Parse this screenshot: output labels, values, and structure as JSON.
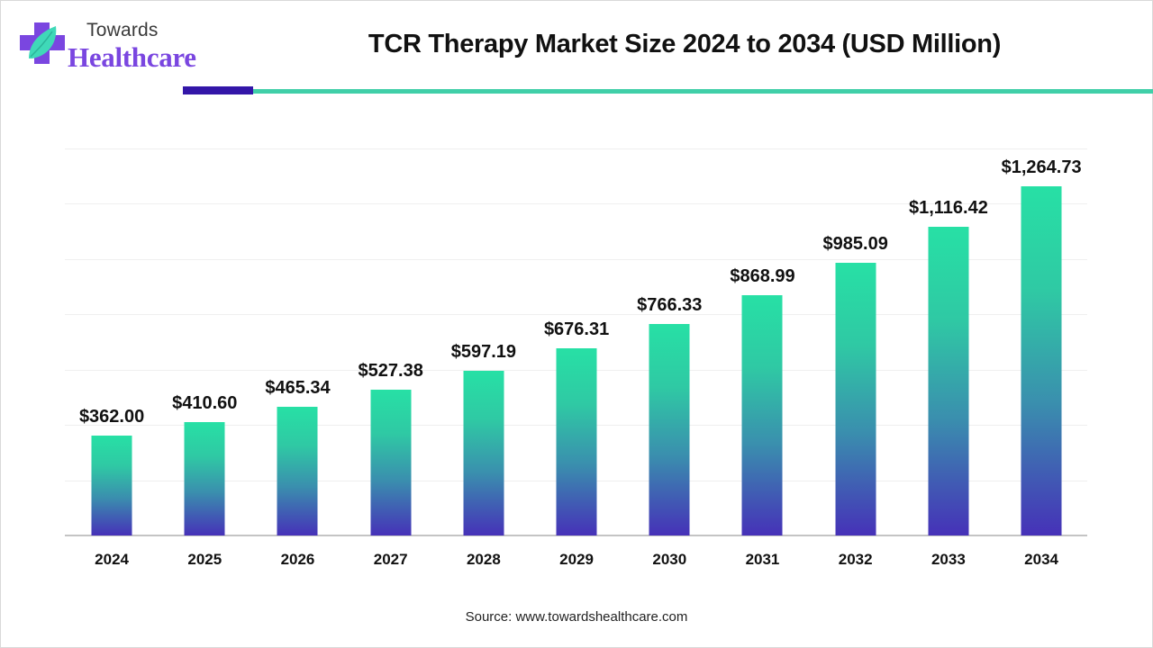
{
  "brand": {
    "line1": "Towards",
    "line2": "Healthcare",
    "icon": "medical-cross-leaf-icon",
    "colors": {
      "cross": "#7a46e0",
      "leaf": "#3fd9b8",
      "text_dark": "#3a3a3a"
    }
  },
  "header": {
    "title": "TCR Therapy Market Size 2024 to 2034 (USD Million)",
    "accent_colors": {
      "dark": "#3316a8",
      "teal": "#40cfa8"
    }
  },
  "footer": {
    "source": "Source: www.towardshealthcare.com"
  },
  "chart_data": {
    "type": "bar",
    "title": "TCR Therapy Market Size 2024 to 2034 (USD Million)",
    "xlabel": "",
    "ylabel": "USD Million",
    "categories": [
      "2024",
      "2025",
      "2026",
      "2027",
      "2028",
      "2029",
      "2030",
      "2031",
      "2032",
      "2033",
      "2034"
    ],
    "values": [
      362.0,
      410.6,
      465.34,
      527.38,
      597.19,
      676.31,
      766.33,
      868.99,
      985.09,
      1116.42,
      1264.73
    ],
    "labels": [
      "$362.00",
      "$410.60",
      "$465.34",
      "$527.38",
      "$597.19",
      "$676.31",
      "$766.33",
      "$868.99",
      "$985.09",
      "$1,116.42",
      "$1,264.73"
    ],
    "ylim": [
      0,
      1400
    ],
    "ytick_step": 200,
    "y_axis_visible": false,
    "grid": true,
    "legend": null,
    "bar_gradient": {
      "top": "#27e0a5",
      "bottom": "#4631b8"
    }
  }
}
